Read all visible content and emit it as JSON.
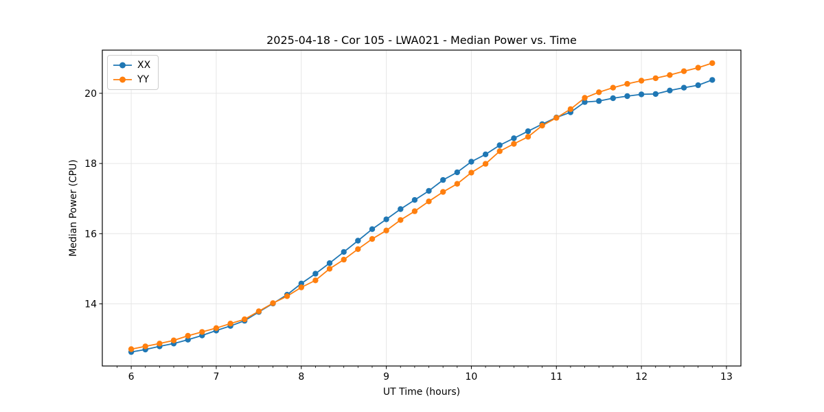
{
  "chart_data": {
    "type": "line",
    "title": "2025-04-18 - Cor 105 - LWA021 - Median Power vs. Time",
    "xlabel": "UT Time (hours)",
    "ylabel": "Median Power (CPU)",
    "xlim": [
      5.66,
      13.17
    ],
    "ylim": [
      12.23,
      21.23
    ],
    "xticks": [
      6,
      7,
      8,
      9,
      10,
      11,
      12,
      13
    ],
    "yticks": [
      14,
      16,
      18,
      20
    ],
    "x_minor_divisions": 6,
    "grid": true,
    "grid_color": "#e6e6e6",
    "spine_color": "#000000",
    "legend_position": "upper left",
    "x": [
      6.0,
      6.1667,
      6.3333,
      6.5,
      6.6667,
      6.8333,
      7.0,
      7.1667,
      7.3333,
      7.5,
      7.6667,
      7.8333,
      8.0,
      8.1667,
      8.3333,
      8.5,
      8.6667,
      8.8333,
      9.0,
      9.1667,
      9.3333,
      9.5,
      9.6667,
      9.8333,
      10.0,
      10.1667,
      10.3333,
      10.5,
      10.6667,
      10.8333,
      11.0,
      11.1667,
      11.3333,
      11.5,
      11.6667,
      11.8333,
      12.0,
      12.1667,
      12.3333,
      12.5,
      12.6667,
      12.8333
    ],
    "series": [
      {
        "name": "XX",
        "color": "#1f77b4",
        "values": [
          12.63,
          12.7,
          12.79,
          12.87,
          12.98,
          13.1,
          13.24,
          13.37,
          13.52,
          13.77,
          14.01,
          14.26,
          14.58,
          14.86,
          15.16,
          15.48,
          15.8,
          16.13,
          16.41,
          16.7,
          16.96,
          17.22,
          17.53,
          17.75,
          18.05,
          18.26,
          18.52,
          18.72,
          18.92,
          19.12,
          19.31,
          19.46,
          19.75,
          19.78,
          19.86,
          19.92,
          19.97,
          19.98,
          20.08,
          20.16,
          20.23,
          20.38
        ]
      },
      {
        "name": "YY",
        "color": "#ff7f0e",
        "values": [
          12.71,
          12.79,
          12.87,
          12.96,
          13.09,
          13.2,
          13.31,
          13.44,
          13.56,
          13.79,
          14.02,
          14.22,
          14.47,
          14.67,
          15.0,
          15.26,
          15.56,
          15.85,
          16.09,
          16.39,
          16.64,
          16.92,
          17.19,
          17.42,
          17.74,
          17.99,
          18.35,
          18.56,
          18.76,
          19.08,
          19.3,
          19.55,
          19.87,
          20.03,
          20.16,
          20.27,
          20.36,
          20.43,
          20.52,
          20.63,
          20.73,
          20.86
        ]
      }
    ]
  }
}
